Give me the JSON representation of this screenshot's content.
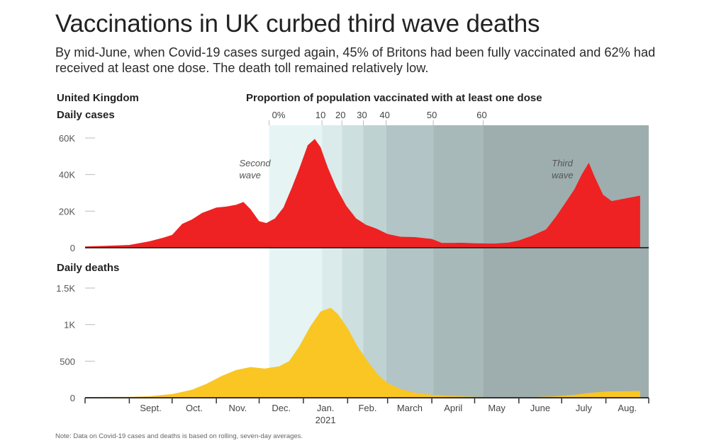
{
  "title": "Vaccinations in UK curbed third wave deaths",
  "subtitle": "By mid-June, when Covid-19 cases surged again, 45% of Britons had been fully vaccinated and 62% had received at least one dose. The death toll remained relatively low.",
  "note": "Note: Data on Covid-19 cases and deaths is based on rolling, seven-day averages.",
  "colors": {
    "cases": "#ee2222",
    "deaths": "#f9c623",
    "axis": "#333333"
  },
  "chart_data": {
    "type": "area",
    "region_label": "United Kingdom",
    "band_label": "Proportion of population vaccinated with at least one dose",
    "year_label": "2021",
    "x_ticks": [
      "Sept.",
      "Oct.",
      "Nov.",
      "Dec.",
      "Jan.",
      "Feb.",
      "March",
      "April",
      "May",
      "June",
      "July",
      "Aug."
    ],
    "vaccination_bands": [
      {
        "label": "0%",
        "start": "2020-12-08",
        "color": "#e6f4f4"
      },
      {
        "label": "10",
        "start": "2021-01-14",
        "color": "#dbebeb"
      },
      {
        "label": "20",
        "start": "2021-01-28",
        "color": "#cddfdf"
      },
      {
        "label": "30",
        "start": "2021-02-12",
        "color": "#bfd2d2"
      },
      {
        "label": "40",
        "start": "2021-02-28",
        "color": "#b2c4c5"
      },
      {
        "label": "50",
        "start": "2021-04-02",
        "color": "#a8b9b9"
      },
      {
        "label": "60",
        "start": "2021-05-07",
        "color": "#9eaeae"
      }
    ],
    "cases": {
      "ylabel": "Daily cases",
      "yticks": [
        "0",
        "20K",
        "40K",
        "60K"
      ],
      "ylim": [
        0,
        60000
      ],
      "annotations": [
        {
          "text": "Second wave",
          "date": "2020-11-27"
        },
        {
          "text": "Third wave",
          "date": "2021-07-04"
        }
      ],
      "points": [
        [
          "2020-08-01",
          700
        ],
        [
          "2020-08-15",
          1000
        ],
        [
          "2020-09-01",
          1500
        ],
        [
          "2020-09-15",
          3500
        ],
        [
          "2020-09-25",
          5500
        ],
        [
          "2020-10-01",
          7000
        ],
        [
          "2020-10-08",
          13000
        ],
        [
          "2020-10-15",
          15500
        ],
        [
          "2020-10-22",
          19000
        ],
        [
          "2020-11-01",
          22000
        ],
        [
          "2020-11-08",
          22500
        ],
        [
          "2020-11-15",
          23500
        ],
        [
          "2020-11-20",
          25000
        ],
        [
          "2020-11-25",
          21000
        ],
        [
          "2020-12-01",
          14500
        ],
        [
          "2020-12-06",
          13500
        ],
        [
          "2020-12-12",
          16000
        ],
        [
          "2020-12-18",
          22000
        ],
        [
          "2020-12-24",
          33000
        ],
        [
          "2020-12-29",
          43000
        ],
        [
          "2021-01-04",
          56000
        ],
        [
          "2021-01-09",
          59500
        ],
        [
          "2021-01-13",
          55000
        ],
        [
          "2021-01-18",
          44000
        ],
        [
          "2021-01-24",
          33000
        ],
        [
          "2021-01-31",
          23000
        ],
        [
          "2021-02-07",
          16000
        ],
        [
          "2021-02-14",
          12500
        ],
        [
          "2021-02-21",
          10500
        ],
        [
          "2021-03-01",
          7500
        ],
        [
          "2021-03-10",
          6000
        ],
        [
          "2021-03-20",
          5800
        ],
        [
          "2021-04-01",
          4800
        ],
        [
          "2021-04-08",
          2600
        ],
        [
          "2021-04-15",
          2600
        ],
        [
          "2021-04-22",
          2700
        ],
        [
          "2021-05-01",
          2400
        ],
        [
          "2021-05-15",
          2300
        ],
        [
          "2021-05-25",
          2800
        ],
        [
          "2021-06-01",
          4000
        ],
        [
          "2021-06-10",
          6500
        ],
        [
          "2021-06-20",
          10000
        ],
        [
          "2021-06-27",
          17000
        ],
        [
          "2021-07-04",
          25000
        ],
        [
          "2021-07-10",
          32000
        ],
        [
          "2021-07-15",
          40000
        ],
        [
          "2021-07-20",
          46500
        ],
        [
          "2021-07-24",
          39000
        ],
        [
          "2021-07-30",
          29000
        ],
        [
          "2021-08-05",
          25500
        ],
        [
          "2021-08-15",
          27000
        ],
        [
          "2021-08-25",
          28500
        ]
      ]
    },
    "deaths": {
      "ylabel": "Daily deaths",
      "yticks": [
        "0",
        "500",
        "1K",
        "1.5K"
      ],
      "ylim": [
        0,
        1500
      ],
      "points": [
        [
          "2020-08-01",
          10
        ],
        [
          "2020-09-01",
          12
        ],
        [
          "2020-09-15",
          20
        ],
        [
          "2020-10-01",
          50
        ],
        [
          "2020-10-15",
          110
        ],
        [
          "2020-10-25",
          190
        ],
        [
          "2020-11-05",
          300
        ],
        [
          "2020-11-15",
          380
        ],
        [
          "2020-11-25",
          420
        ],
        [
          "2020-12-05",
          400
        ],
        [
          "2020-12-15",
          430
        ],
        [
          "2020-12-22",
          500
        ],
        [
          "2020-12-29",
          700
        ],
        [
          "2021-01-06",
          980
        ],
        [
          "2021-01-13",
          1180
        ],
        [
          "2021-01-20",
          1230
        ],
        [
          "2021-01-25",
          1150
        ],
        [
          "2021-02-01",
          950
        ],
        [
          "2021-02-08",
          700
        ],
        [
          "2021-02-15",
          500
        ],
        [
          "2021-02-22",
          320
        ],
        [
          "2021-03-01",
          200
        ],
        [
          "2021-03-10",
          120
        ],
        [
          "2021-03-20",
          70
        ],
        [
          "2021-04-01",
          40
        ],
        [
          "2021-04-15",
          25
        ],
        [
          "2021-05-01",
          12
        ],
        [
          "2021-05-20",
          8
        ],
        [
          "2021-06-10",
          10
        ],
        [
          "2021-06-25",
          18
        ],
        [
          "2021-07-10",
          40
        ],
        [
          "2021-07-20",
          65
        ],
        [
          "2021-08-01",
          85
        ],
        [
          "2021-08-15",
          90
        ],
        [
          "2021-08-25",
          92
        ]
      ]
    }
  }
}
